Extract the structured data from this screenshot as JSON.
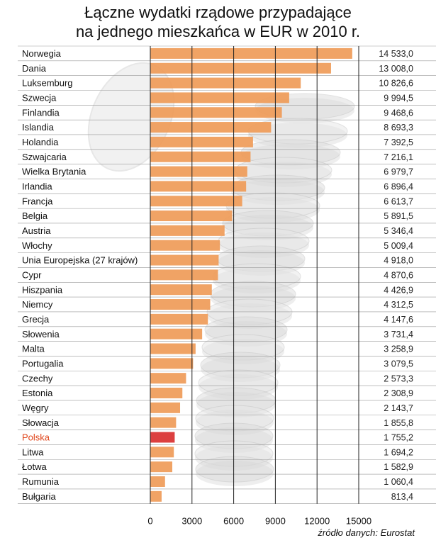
{
  "title_line1": "Łączne wydatki rządowe przypadające",
  "title_line2": "na jednego mieszkańca w EUR w 2010 r.",
  "source": "źródło danych: Eurostat",
  "colors": {
    "bar": "#ef9b58",
    "highlight_bar": "#d92f2f",
    "highlight_text": "#e0461c",
    "grid": "#222222",
    "row_line": "#999999"
  },
  "chart_data": {
    "type": "bar",
    "orientation": "horizontal",
    "title": "Łączne wydatki rządowe przypadające na jednego mieszkańca w EUR w 2010 r.",
    "xlim": [
      0,
      15000
    ],
    "x_ticks": [
      0,
      3000,
      6000,
      9000,
      12000,
      15000
    ],
    "grid": true,
    "highlight": "Polska",
    "categories": [
      "Norwegia",
      "Dania",
      "Luksemburg",
      "Szwecja",
      "Finlandia",
      "Islandia",
      "Holandia",
      "Szwajcaria",
      "Wielka Brytania",
      "Irlandia",
      "Francja",
      "Belgia",
      "Austria",
      "Włochy",
      "Unia Europejska (27 krajów)",
      "Cypr",
      "Hiszpania",
      "Niemcy",
      "Grecja",
      "Słowenia",
      "Malta",
      "Portugalia",
      "Czechy",
      "Estonia",
      "Węgry",
      "Słowacja",
      "Polska",
      "Litwa",
      "Łotwa",
      "Rumunia",
      "Bułgaria"
    ],
    "values": [
      14533.0,
      13008.0,
      10826.6,
      9994.5,
      9468.6,
      8693.3,
      7392.5,
      7216.1,
      6979.7,
      6896.4,
      6613.7,
      5891.5,
      5346.4,
      5009.4,
      4918.0,
      4870.6,
      4426.9,
      4312.5,
      4147.6,
      3731.4,
      3258.9,
      3079.5,
      2573.3,
      2308.9,
      2143.7,
      1855.8,
      1755.2,
      1694.2,
      1582.9,
      1060.4,
      813.4
    ],
    "value_labels": [
      "14 533,0",
      "13 008,0",
      "10 826,6",
      "9 994,5",
      "9 468,6",
      "8 693,3",
      "7 392,5",
      "7 216,1",
      "6 979,7",
      "6 896,4",
      "6 613,7",
      "5 891,5",
      "5 346,4",
      "5 009,4",
      "4 918,0",
      "4 870,6",
      "4 426,9",
      "4 312,5",
      "4 147,6",
      "3 731,4",
      "3 258,9",
      "3 079,5",
      "2 573,3",
      "2 308,9",
      "2 143,7",
      "1 855,8",
      "1 755,2",
      "1 694,2",
      "1 582,9",
      "1 060,4",
      "813,4"
    ]
  }
}
